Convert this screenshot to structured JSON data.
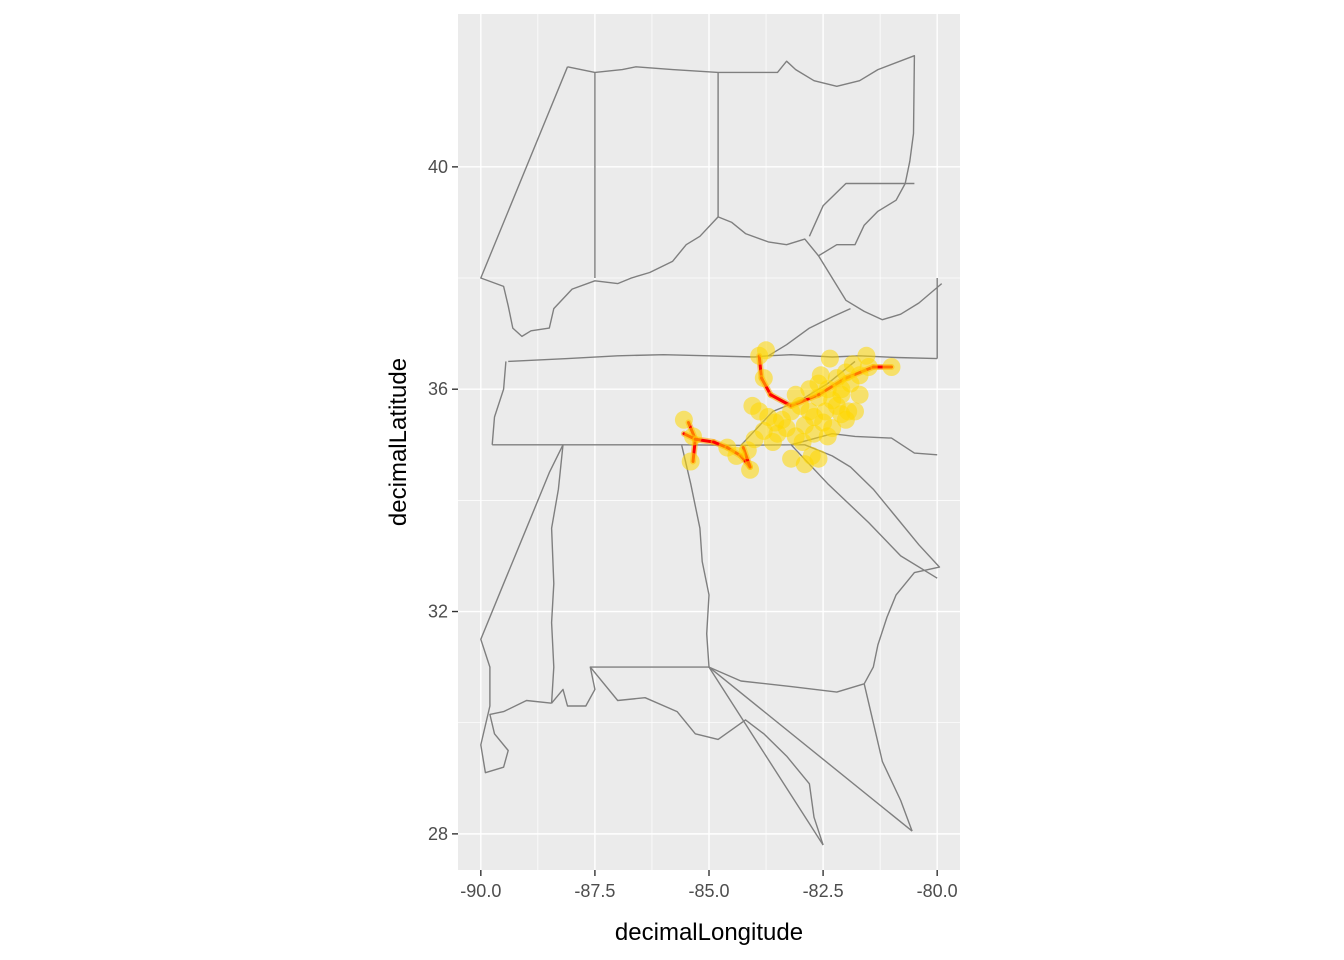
{
  "chart_data": {
    "type": "scatter",
    "xlabel": "decimalLongitude",
    "ylabel": "decimalLatitude",
    "xlim": [
      -90.5,
      -79.5
    ],
    "ylim": [
      27.35,
      42.75
    ],
    "x_ticks": [
      {
        "value": -90.0,
        "label": "-90.0"
      },
      {
        "value": -87.5,
        "label": "-87.5"
      },
      {
        "value": -85.0,
        "label": "-85.0"
      },
      {
        "value": -82.5,
        "label": "-82.5"
      },
      {
        "value": -80.0,
        "label": "-80.0"
      }
    ],
    "y_ticks": [
      {
        "value": 28,
        "label": "28"
      },
      {
        "value": 32,
        "label": "32"
      },
      {
        "value": 36,
        "label": "36"
      },
      {
        "value": 40,
        "label": "40"
      }
    ],
    "grid": true,
    "colors": {
      "panel_bg": "#ebebeb",
      "grid": "#ffffff",
      "state_outline": "#7f7f7f",
      "points": "#ffd700",
      "network_edges": "#ff0000"
    },
    "state_outlines": [
      [
        [
          -88.1,
          41.8
        ],
        [
          -87.5,
          41.7
        ],
        [
          -86.9,
          41.75
        ],
        [
          -86.6,
          41.8
        ],
        [
          -85.8,
          41.75
        ],
        [
          -84.8,
          41.7
        ],
        [
          -83.5,
          41.7
        ],
        [
          -83.3,
          41.9
        ],
        [
          -83.1,
          41.75
        ],
        [
          -82.7,
          41.55
        ],
        [
          -82.2,
          41.45
        ],
        [
          -81.7,
          41.55
        ],
        [
          -81.3,
          41.75
        ],
        [
          -80.5,
          42.0
        ],
        [
          -80.52,
          40.6
        ],
        [
          -80.6,
          40.1
        ],
        [
          -80.7,
          39.7
        ],
        [
          -80.9,
          39.4
        ],
        [
          -81.3,
          39.2
        ],
        [
          -81.6,
          38.95
        ],
        [
          -81.8,
          38.6
        ],
        [
          -82.2,
          38.6
        ],
        [
          -82.6,
          38.4
        ],
        [
          -82.9,
          38.7
        ],
        [
          -83.3,
          38.6
        ],
        [
          -83.7,
          38.65
        ],
        [
          -84.2,
          38.8
        ],
        [
          -84.5,
          39.0
        ],
        [
          -84.8,
          39.1
        ],
        [
          -85.2,
          38.75
        ],
        [
          -85.5,
          38.6
        ],
        [
          -85.8,
          38.3
        ],
        [
          -86.3,
          38.1
        ],
        [
          -86.7,
          38.0
        ],
        [
          -87.0,
          37.9
        ],
        [
          -87.5,
          37.95
        ],
        [
          -88.0,
          37.8
        ],
        [
          -88.4,
          37.45
        ],
        [
          -88.5,
          37.1
        ],
        [
          -88.9,
          37.05
        ],
        [
          -89.1,
          36.95
        ],
        [
          -89.3,
          37.1
        ],
        [
          -89.4,
          37.5
        ],
        [
          -89.5,
          37.85
        ],
        [
          -90.0,
          38.0
        ],
        [
          -88.1,
          41.8
        ]
      ],
      [
        [
          -87.5,
          41.7
        ],
        [
          -87.5,
          38.0
        ]
      ],
      [
        [
          -84.8,
          41.7
        ],
        [
          -84.8,
          39.1
        ]
      ],
      [
        [
          -80.5,
          39.7
        ],
        [
          -82.0,
          39.7
        ],
        [
          -82.5,
          39.3
        ],
        [
          -82.8,
          38.75
        ]
      ],
      [
        [
          -82.6,
          38.4
        ],
        [
          -82.3,
          38.0
        ],
        [
          -82.0,
          37.6
        ],
        [
          -81.6,
          37.4
        ],
        [
          -81.2,
          37.25
        ],
        [
          -80.8,
          37.35
        ],
        [
          -80.4,
          37.55
        ],
        [
          -79.9,
          37.9
        ]
      ],
      [
        [
          -80.0,
          38.0
        ],
        [
          -80.0,
          36.55
        ]
      ],
      [
        [
          -89.4,
          36.5
        ],
        [
          -88.1,
          36.55
        ],
        [
          -87.0,
          36.6
        ],
        [
          -86.0,
          36.62
        ],
        [
          -85.0,
          36.6
        ],
        [
          -84.0,
          36.58
        ],
        [
          -83.7,
          36.6
        ],
        [
          -83.2,
          36.62
        ],
        [
          -82.3,
          36.58
        ],
        [
          -81.7,
          36.6
        ],
        [
          -80.9,
          36.57
        ],
        [
          -80.0,
          36.55
        ]
      ],
      [
        [
          -83.7,
          36.6
        ],
        [
          -83.3,
          36.8
        ],
        [
          -82.8,
          37.1
        ],
        [
          -82.3,
          37.3
        ],
        [
          -81.9,
          37.45
        ]
      ],
      [
        [
          -89.75,
          35.0
        ],
        [
          -89.7,
          35.5
        ],
        [
          -89.5,
          36.0
        ],
        [
          -89.45,
          36.5
        ]
      ],
      [
        [
          -89.75,
          35.0
        ],
        [
          -88.2,
          35.0
        ],
        [
          -87.0,
          35.0
        ],
        [
          -85.6,
          35.0
        ],
        [
          -84.3,
          34.99
        ],
        [
          -83.2,
          35.0
        ],
        [
          -82.3,
          35.2
        ],
        [
          -81.8,
          35.15
        ],
        [
          -81.0,
          35.12
        ],
        [
          -80.5,
          34.85
        ],
        [
          -80.0,
          34.82
        ]
      ],
      [
        [
          -84.3,
          34.99
        ],
        [
          -83.6,
          35.6
        ],
        [
          -83.0,
          35.8
        ],
        [
          -82.4,
          36.1
        ],
        [
          -81.8,
          36.5
        ]
      ],
      [
        [
          -88.2,
          35.0
        ],
        [
          -88.3,
          34.2
        ],
        [
          -88.45,
          33.5
        ],
        [
          -88.4,
          32.5
        ],
        [
          -88.45,
          31.8
        ],
        [
          -88.4,
          31.0
        ],
        [
          -88.45,
          30.35
        ]
      ],
      [
        [
          -88.45,
          30.35
        ],
        [
          -89.0,
          30.4
        ],
        [
          -89.5,
          30.2
        ],
        [
          -89.8,
          30.15
        ],
        [
          -89.7,
          29.8
        ],
        [
          -89.4,
          29.5
        ],
        [
          -89.5,
          29.2
        ],
        [
          -89.9,
          29.1
        ],
        [
          -90.0,
          29.6
        ],
        [
          -89.8,
          30.3
        ],
        [
          -89.8,
          31.0
        ],
        [
          -90.0,
          31.5
        ],
        [
          -89.5,
          32.5
        ],
        [
          -89.0,
          33.5
        ],
        [
          -88.5,
          34.5
        ],
        [
          -88.2,
          35.0
        ]
      ],
      [
        [
          -85.6,
          35.0
        ],
        [
          -85.4,
          34.3
        ],
        [
          -85.2,
          33.5
        ],
        [
          -85.15,
          32.9
        ],
        [
          -85.0,
          32.3
        ],
        [
          -85.05,
          31.6
        ],
        [
          -85.0,
          31.0
        ],
        [
          -86.0,
          31.0
        ],
        [
          -87.0,
          31.0
        ],
        [
          -87.6,
          31.0
        ],
        [
          -87.5,
          30.6
        ],
        [
          -87.7,
          30.3
        ],
        [
          -88.1,
          30.3
        ],
        [
          -88.2,
          30.6
        ],
        [
          -88.45,
          30.35
        ]
      ],
      [
        [
          -85.0,
          31.0
        ],
        [
          -84.3,
          30.75
        ],
        [
          -83.2,
          30.65
        ],
        [
          -82.2,
          30.55
        ],
        [
          -81.6,
          30.7
        ],
        [
          -81.4,
          31.0
        ],
        [
          -81.3,
          31.4
        ],
        [
          -81.1,
          31.9
        ],
        [
          -80.9,
          32.3
        ],
        [
          -80.5,
          32.7
        ],
        [
          -79.95,
          32.8
        ],
        [
          -80.4,
          33.2
        ],
        [
          -80.9,
          33.7
        ],
        [
          -81.4,
          34.2
        ],
        [
          -81.9,
          34.6
        ],
        [
          -82.3,
          34.8
        ],
        [
          -82.9,
          35.0
        ],
        [
          -83.2,
          35.0
        ]
      ],
      [
        [
          -87.6,
          31.0
        ],
        [
          -87.0,
          30.4
        ],
        [
          -86.4,
          30.45
        ],
        [
          -85.7,
          30.2
        ],
        [
          -85.3,
          29.8
        ],
        [
          -84.8,
          29.7
        ],
        [
          -84.2,
          30.05
        ],
        [
          -83.8,
          29.8
        ],
        [
          -83.3,
          29.4
        ],
        [
          -82.8,
          28.9
        ],
        [
          -82.7,
          28.3
        ],
        [
          -82.5,
          27.8
        ]
      ],
      [
        [
          -81.6,
          30.7
        ],
        [
          -81.4,
          30.0
        ],
        [
          -81.2,
          29.3
        ],
        [
          -80.8,
          28.6
        ],
        [
          -80.55,
          28.05
        ]
      ],
      [
        [
          -85.0,
          31.0
        ],
        [
          -82.5,
          27.8
        ]
      ],
      [
        [
          -85.0,
          31.0
        ],
        [
          -80.55,
          28.05
        ]
      ],
      [
        [
          -83.2,
          35.0
        ],
        [
          -82.4,
          34.3
        ],
        [
          -81.5,
          33.6
        ],
        [
          -80.8,
          33.0
        ],
        [
          -80.0,
          32.6
        ]
      ]
    ],
    "edges": [
      [
        [
          -85.45,
          35.4
        ],
        [
          -85.3,
          35.1
        ]
      ],
      [
        [
          -85.3,
          35.1
        ],
        [
          -85.55,
          35.2
        ]
      ],
      [
        [
          -85.3,
          35.1
        ],
        [
          -85.35,
          34.7
        ]
      ],
      [
        [
          -85.3,
          35.1
        ],
        [
          -84.9,
          35.05
        ]
      ],
      [
        [
          -84.9,
          35.05
        ],
        [
          -84.6,
          34.95
        ]
      ],
      [
        [
          -84.6,
          34.95
        ],
        [
          -84.3,
          34.8
        ]
      ],
      [
        [
          -84.3,
          34.8
        ],
        [
          -84.1,
          34.6
        ]
      ],
      [
        [
          -84.1,
          34.6
        ],
        [
          -84.25,
          34.95
        ]
      ],
      [
        [
          -83.9,
          36.6
        ],
        [
          -83.85,
          36.2
        ]
      ],
      [
        [
          -83.85,
          36.2
        ],
        [
          -83.65,
          35.9
        ]
      ],
      [
        [
          -83.65,
          35.9
        ],
        [
          -83.2,
          35.7
        ]
      ],
      [
        [
          -83.2,
          35.7
        ],
        [
          -82.6,
          35.9
        ]
      ],
      [
        [
          -82.6,
          35.9
        ],
        [
          -82.0,
          36.2
        ]
      ],
      [
        [
          -82.0,
          36.2
        ],
        [
          -81.4,
          36.4
        ]
      ],
      [
        [
          -81.4,
          36.4
        ],
        [
          -81.0,
          36.4
        ]
      ]
    ],
    "points": [
      [
        -85.55,
        35.45
      ],
      [
        -85.35,
        35.15
      ],
      [
        -85.4,
        34.7
      ],
      [
        -84.6,
        34.95
      ],
      [
        -84.4,
        34.8
      ],
      [
        -84.1,
        34.55
      ],
      [
        -84.15,
        34.9
      ],
      [
        -83.9,
        36.6
      ],
      [
        -83.75,
        36.7
      ],
      [
        -83.8,
        36.2
      ],
      [
        -84.05,
        35.7
      ],
      [
        -83.9,
        35.6
      ],
      [
        -83.7,
        35.5
      ],
      [
        -83.55,
        35.4
      ],
      [
        -83.4,
        35.45
      ],
      [
        -83.2,
        35.6
      ],
      [
        -83.0,
        35.7
      ],
      [
        -83.3,
        35.3
      ],
      [
        -83.5,
        35.2
      ],
      [
        -84.0,
        35.1
      ],
      [
        -83.8,
        35.25
      ],
      [
        -83.6,
        35.05
      ],
      [
        -83.1,
        35.15
      ],
      [
        -82.9,
        35.35
      ],
      [
        -82.7,
        35.5
      ],
      [
        -82.5,
        35.4
      ],
      [
        -82.3,
        35.3
      ],
      [
        -82.1,
        35.55
      ],
      [
        -81.95,
        35.6
      ],
      [
        -82.1,
        35.9
      ],
      [
        -81.9,
        36.1
      ],
      [
        -81.7,
        36.25
      ],
      [
        -81.5,
        36.4
      ],
      [
        -81.0,
        36.4
      ],
      [
        -81.55,
        36.6
      ],
      [
        -82.2,
        36.2
      ],
      [
        -82.4,
        36.0
      ],
      [
        -82.6,
        35.85
      ],
      [
        -82.8,
        36.0
      ],
      [
        -82.6,
        36.1
      ],
      [
        -82.35,
        36.55
      ],
      [
        -82.0,
        36.3
      ],
      [
        -82.2,
        35.7
      ],
      [
        -82.45,
        35.6
      ],
      [
        -82.7,
        35.2
      ],
      [
        -82.95,
        35.05
      ],
      [
        -82.75,
        34.8
      ],
      [
        -82.9,
        34.65
      ],
      [
        -83.2,
        34.75
      ],
      [
        -82.6,
        34.75
      ],
      [
        -81.8,
        35.6
      ],
      [
        -82.0,
        35.45
      ],
      [
        -82.3,
        35.8
      ],
      [
        -82.55,
        36.25
      ],
      [
        -81.85,
        36.45
      ],
      [
        -82.1,
        36.0
      ],
      [
        -81.7,
        35.9
      ],
      [
        -82.8,
        35.6
      ],
      [
        -83.1,
        35.9
      ],
      [
        -82.4,
        35.15
      ]
    ]
  }
}
